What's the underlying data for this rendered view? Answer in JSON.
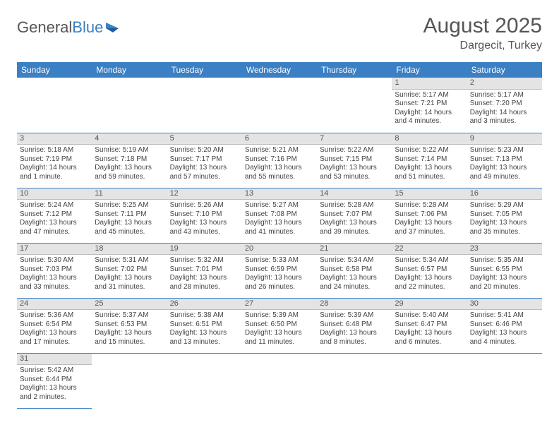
{
  "logo": {
    "general": "General",
    "blue": "Blue"
  },
  "header": {
    "month_title": "August 2025",
    "location": "Dargecit, Turkey"
  },
  "colors": {
    "header_bg": "#3b7fc4",
    "header_text": "#ffffff",
    "daynum_bg": "#e4e4e4",
    "cell_border": "#3b7fc4",
    "text": "#444444"
  },
  "daynames": [
    "Sunday",
    "Monday",
    "Tuesday",
    "Wednesday",
    "Thursday",
    "Friday",
    "Saturday"
  ],
  "weeks": [
    [
      null,
      null,
      null,
      null,
      null,
      {
        "n": "1",
        "sr": "Sunrise: 5:17 AM",
        "ss": "Sunset: 7:21 PM",
        "dl": "Daylight: 14 hours and 4 minutes."
      },
      {
        "n": "2",
        "sr": "Sunrise: 5:17 AM",
        "ss": "Sunset: 7:20 PM",
        "dl": "Daylight: 14 hours and 3 minutes."
      }
    ],
    [
      {
        "n": "3",
        "sr": "Sunrise: 5:18 AM",
        "ss": "Sunset: 7:19 PM",
        "dl": "Daylight: 14 hours and 1 minute."
      },
      {
        "n": "4",
        "sr": "Sunrise: 5:19 AM",
        "ss": "Sunset: 7:18 PM",
        "dl": "Daylight: 13 hours and 59 minutes."
      },
      {
        "n": "5",
        "sr": "Sunrise: 5:20 AM",
        "ss": "Sunset: 7:17 PM",
        "dl": "Daylight: 13 hours and 57 minutes."
      },
      {
        "n": "6",
        "sr": "Sunrise: 5:21 AM",
        "ss": "Sunset: 7:16 PM",
        "dl": "Daylight: 13 hours and 55 minutes."
      },
      {
        "n": "7",
        "sr": "Sunrise: 5:22 AM",
        "ss": "Sunset: 7:15 PM",
        "dl": "Daylight: 13 hours and 53 minutes."
      },
      {
        "n": "8",
        "sr": "Sunrise: 5:22 AM",
        "ss": "Sunset: 7:14 PM",
        "dl": "Daylight: 13 hours and 51 minutes."
      },
      {
        "n": "9",
        "sr": "Sunrise: 5:23 AM",
        "ss": "Sunset: 7:13 PM",
        "dl": "Daylight: 13 hours and 49 minutes."
      }
    ],
    [
      {
        "n": "10",
        "sr": "Sunrise: 5:24 AM",
        "ss": "Sunset: 7:12 PM",
        "dl": "Daylight: 13 hours and 47 minutes."
      },
      {
        "n": "11",
        "sr": "Sunrise: 5:25 AM",
        "ss": "Sunset: 7:11 PM",
        "dl": "Daylight: 13 hours and 45 minutes."
      },
      {
        "n": "12",
        "sr": "Sunrise: 5:26 AM",
        "ss": "Sunset: 7:10 PM",
        "dl": "Daylight: 13 hours and 43 minutes."
      },
      {
        "n": "13",
        "sr": "Sunrise: 5:27 AM",
        "ss": "Sunset: 7:08 PM",
        "dl": "Daylight: 13 hours and 41 minutes."
      },
      {
        "n": "14",
        "sr": "Sunrise: 5:28 AM",
        "ss": "Sunset: 7:07 PM",
        "dl": "Daylight: 13 hours and 39 minutes."
      },
      {
        "n": "15",
        "sr": "Sunrise: 5:28 AM",
        "ss": "Sunset: 7:06 PM",
        "dl": "Daylight: 13 hours and 37 minutes."
      },
      {
        "n": "16",
        "sr": "Sunrise: 5:29 AM",
        "ss": "Sunset: 7:05 PM",
        "dl": "Daylight: 13 hours and 35 minutes."
      }
    ],
    [
      {
        "n": "17",
        "sr": "Sunrise: 5:30 AM",
        "ss": "Sunset: 7:03 PM",
        "dl": "Daylight: 13 hours and 33 minutes."
      },
      {
        "n": "18",
        "sr": "Sunrise: 5:31 AM",
        "ss": "Sunset: 7:02 PM",
        "dl": "Daylight: 13 hours and 31 minutes."
      },
      {
        "n": "19",
        "sr": "Sunrise: 5:32 AM",
        "ss": "Sunset: 7:01 PM",
        "dl": "Daylight: 13 hours and 28 minutes."
      },
      {
        "n": "20",
        "sr": "Sunrise: 5:33 AM",
        "ss": "Sunset: 6:59 PM",
        "dl": "Daylight: 13 hours and 26 minutes."
      },
      {
        "n": "21",
        "sr": "Sunrise: 5:34 AM",
        "ss": "Sunset: 6:58 PM",
        "dl": "Daylight: 13 hours and 24 minutes."
      },
      {
        "n": "22",
        "sr": "Sunrise: 5:34 AM",
        "ss": "Sunset: 6:57 PM",
        "dl": "Daylight: 13 hours and 22 minutes."
      },
      {
        "n": "23",
        "sr": "Sunrise: 5:35 AM",
        "ss": "Sunset: 6:55 PM",
        "dl": "Daylight: 13 hours and 20 minutes."
      }
    ],
    [
      {
        "n": "24",
        "sr": "Sunrise: 5:36 AM",
        "ss": "Sunset: 6:54 PM",
        "dl": "Daylight: 13 hours and 17 minutes."
      },
      {
        "n": "25",
        "sr": "Sunrise: 5:37 AM",
        "ss": "Sunset: 6:53 PM",
        "dl": "Daylight: 13 hours and 15 minutes."
      },
      {
        "n": "26",
        "sr": "Sunrise: 5:38 AM",
        "ss": "Sunset: 6:51 PM",
        "dl": "Daylight: 13 hours and 13 minutes."
      },
      {
        "n": "27",
        "sr": "Sunrise: 5:39 AM",
        "ss": "Sunset: 6:50 PM",
        "dl": "Daylight: 13 hours and 11 minutes."
      },
      {
        "n": "28",
        "sr": "Sunrise: 5:39 AM",
        "ss": "Sunset: 6:48 PM",
        "dl": "Daylight: 13 hours and 8 minutes."
      },
      {
        "n": "29",
        "sr": "Sunrise: 5:40 AM",
        "ss": "Sunset: 6:47 PM",
        "dl": "Daylight: 13 hours and 6 minutes."
      },
      {
        "n": "30",
        "sr": "Sunrise: 5:41 AM",
        "ss": "Sunset: 6:46 PM",
        "dl": "Daylight: 13 hours and 4 minutes."
      }
    ],
    [
      {
        "n": "31",
        "sr": "Sunrise: 5:42 AM",
        "ss": "Sunset: 6:44 PM",
        "dl": "Daylight: 13 hours and 2 minutes."
      },
      null,
      null,
      null,
      null,
      null,
      null
    ]
  ]
}
